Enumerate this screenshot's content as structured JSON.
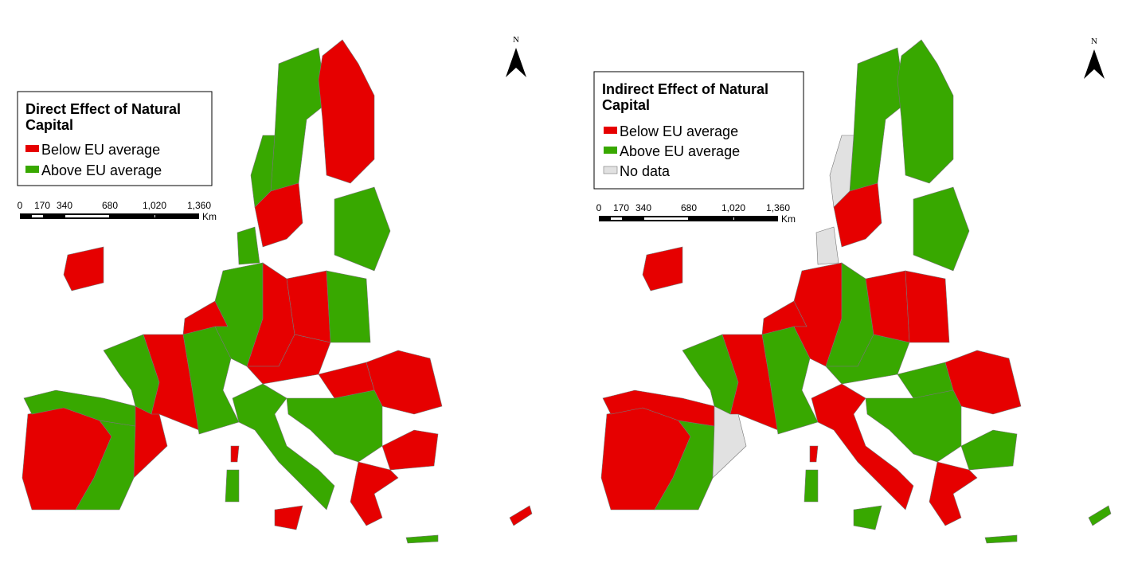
{
  "maps": [
    {
      "legend": {
        "title": "Direct Effect of Natural Capital",
        "items": [
          {
            "label": "Below EU average",
            "color": "#e60000"
          },
          {
            "label": "Above EU average",
            "color": "#38a800"
          }
        ]
      },
      "scale_bar": {
        "ticks": [
          "0",
          "170",
          "340",
          "680",
          "1,020",
          "1,360"
        ],
        "unit": "Km"
      },
      "north_label": "N"
    },
    {
      "legend": {
        "title": "Indirect Effect of Natural Capital",
        "items": [
          {
            "label": "Below EU average",
            "color": "#e60000"
          },
          {
            "label": "Above EU average",
            "color": "#38a800"
          },
          {
            "label": "No data",
            "color": "#e1e1e1"
          }
        ]
      },
      "scale_bar": {
        "ticks": [
          "0",
          "170",
          "340",
          "680",
          "1,020",
          "1,360"
        ],
        "unit": "Km"
      },
      "north_label": "N"
    }
  ]
}
